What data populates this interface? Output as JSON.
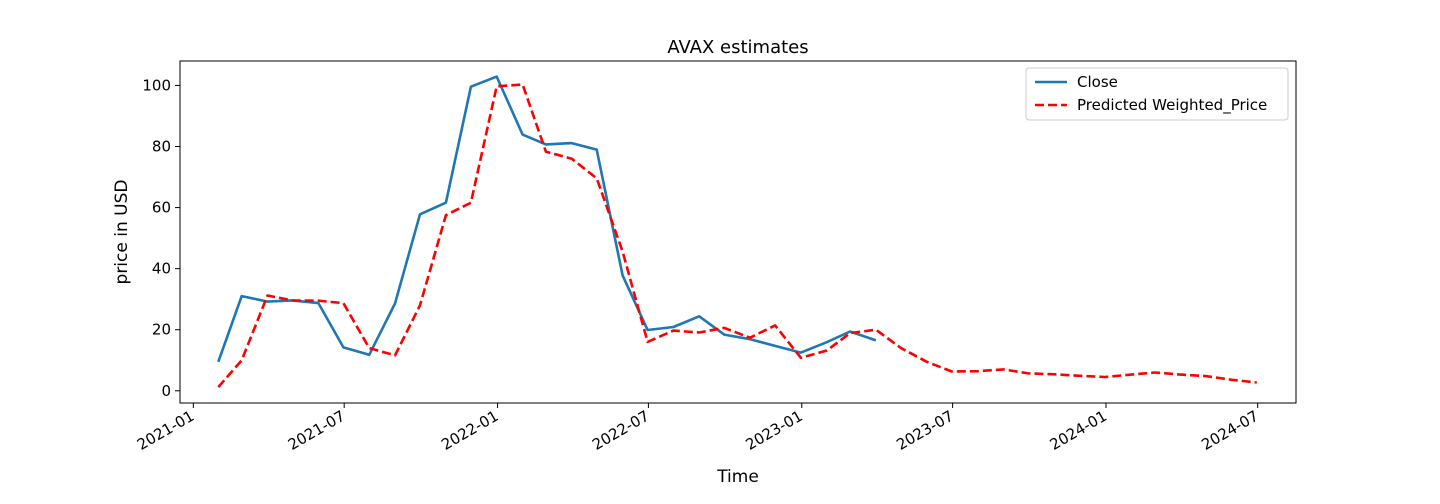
{
  "chart_data": {
    "type": "line",
    "title": "AVAX estimates",
    "xlabel": "Time",
    "ylabel": "price in USD",
    "ylim": [
      -4,
      108
    ],
    "xlim": [
      "2020-12-16",
      "2024-08-16"
    ],
    "yticks": [
      0,
      20,
      40,
      60,
      80,
      100
    ],
    "xticks": [
      {
        "date": "2021-01-01",
        "label": "2021-01"
      },
      {
        "date": "2021-07-01",
        "label": "2021-07"
      },
      {
        "date": "2022-01-01",
        "label": "2022-01"
      },
      {
        "date": "2022-07-01",
        "label": "2022-07"
      },
      {
        "date": "2023-01-01",
        "label": "2023-01"
      },
      {
        "date": "2023-07-01",
        "label": "2023-07"
      },
      {
        "date": "2024-01-01",
        "label": "2024-01"
      },
      {
        "date": "2024-07-01",
        "label": "2024-07"
      }
    ],
    "grid": false,
    "legend_position": "top-right",
    "series": [
      {
        "name": "Close",
        "color": "#1f77b4",
        "style": "solid",
        "points": [
          [
            "2021-01-31",
            9.5
          ],
          [
            "2021-02-28",
            31.0
          ],
          [
            "2021-03-31",
            29.2
          ],
          [
            "2021-04-30",
            29.6
          ],
          [
            "2021-05-31",
            28.7
          ],
          [
            "2021-06-30",
            14.2
          ],
          [
            "2021-07-31",
            11.8
          ],
          [
            "2021-08-31",
            28.6
          ],
          [
            "2021-09-30",
            57.8
          ],
          [
            "2021-10-31",
            61.6
          ],
          [
            "2021-11-30",
            99.6
          ],
          [
            "2021-12-31",
            102.9
          ],
          [
            "2022-01-31",
            83.9
          ],
          [
            "2022-02-28",
            80.7
          ],
          [
            "2022-03-31",
            81.1
          ],
          [
            "2022-04-30",
            79.0
          ],
          [
            "2022-05-31",
            37.8
          ],
          [
            "2022-06-30",
            19.9
          ],
          [
            "2022-07-31",
            20.9
          ],
          [
            "2022-08-31",
            24.4
          ],
          [
            "2022-09-30",
            18.4
          ],
          [
            "2022-10-31",
            16.9
          ],
          [
            "2022-11-30",
            14.7
          ],
          [
            "2022-12-31",
            12.5
          ],
          [
            "2023-01-31",
            15.9
          ],
          [
            "2023-02-28",
            19.4
          ],
          [
            "2023-03-31",
            16.5
          ]
        ]
      },
      {
        "name": "Predicted Weighted_Price",
        "color": "#ff0000",
        "style": "dashed",
        "points": [
          [
            "2021-01-31",
            1.2
          ],
          [
            "2021-02-28",
            10.0
          ],
          [
            "2021-03-31",
            31.2
          ],
          [
            "2021-04-30",
            29.6
          ],
          [
            "2021-05-31",
            29.5
          ],
          [
            "2021-06-30",
            28.7
          ],
          [
            "2021-07-31",
            14.0
          ],
          [
            "2021-08-31",
            11.6
          ],
          [
            "2021-09-30",
            28.0
          ],
          [
            "2021-10-31",
            57.5
          ],
          [
            "2021-11-30",
            61.6
          ],
          [
            "2021-12-31",
            99.7
          ],
          [
            "2022-01-31",
            100.3
          ],
          [
            "2022-02-28",
            78.3
          ],
          [
            "2022-03-31",
            76.0
          ],
          [
            "2022-04-30",
            69.6
          ],
          [
            "2022-05-31",
            45.6
          ],
          [
            "2022-06-30",
            16.0
          ],
          [
            "2022-07-31",
            19.7
          ],
          [
            "2022-08-31",
            19.1
          ],
          [
            "2022-09-30",
            20.6
          ],
          [
            "2022-10-31",
            17.4
          ],
          [
            "2022-11-30",
            21.4
          ],
          [
            "2022-12-31",
            10.8
          ],
          [
            "2023-01-31",
            13.2
          ],
          [
            "2023-02-28",
            18.9
          ],
          [
            "2023-03-31",
            20.0
          ],
          [
            "2023-04-30",
            14.0
          ],
          [
            "2023-05-31",
            9.5
          ],
          [
            "2023-06-30",
            6.3
          ],
          [
            "2023-07-31",
            6.4
          ],
          [
            "2023-08-31",
            7.0
          ],
          [
            "2023-09-30",
            5.7
          ],
          [
            "2023-10-31",
            5.4
          ],
          [
            "2023-11-30",
            4.9
          ],
          [
            "2023-12-31",
            4.5
          ],
          [
            "2024-01-31",
            5.3
          ],
          [
            "2024-02-29",
            6.0
          ],
          [
            "2024-03-31",
            5.3
          ],
          [
            "2024-04-30",
            4.8
          ],
          [
            "2024-05-31",
            3.6
          ],
          [
            "2024-06-30",
            2.7
          ]
        ]
      }
    ]
  }
}
